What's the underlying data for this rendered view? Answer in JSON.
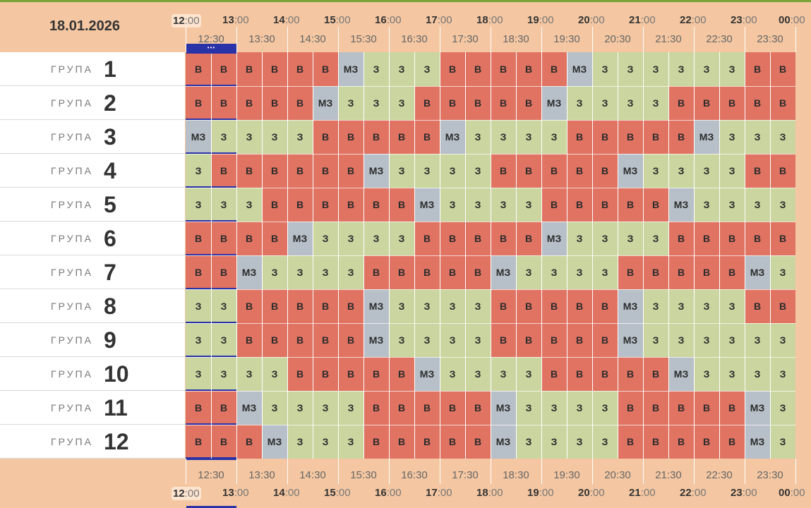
{
  "date": "18.01.2026",
  "row_label_word": "ГРУПА",
  "hour_marks": [
    {
      "h": "12",
      "m": ":00"
    },
    {
      "h": "13",
      "m": ":00"
    },
    {
      "h": "14",
      "m": ":00"
    },
    {
      "h": "15",
      "m": ":00"
    },
    {
      "h": "16",
      "m": ":00"
    },
    {
      "h": "17",
      "m": ":00"
    },
    {
      "h": "18",
      "m": ":00"
    },
    {
      "h": "19",
      "m": ":00"
    },
    {
      "h": "20",
      "m": ":00"
    },
    {
      "h": "21",
      "m": ":00"
    },
    {
      "h": "22",
      "m": ":00"
    },
    {
      "h": "23",
      "m": ":00"
    },
    {
      "h": "00",
      "m": ":00"
    }
  ],
  "half_marks": [
    "12:30",
    "13:30",
    "14:30",
    "15:30",
    "16:30",
    "17:30",
    "18:30",
    "19:30",
    "20:30",
    "21:30",
    "22:30",
    "23:30"
  ],
  "now_indicator": "•••",
  "status_colors": {
    "В": "#e07362",
    "З": "#cad59f",
    "МЗ": "#b7c0c8"
  },
  "groups": [
    {
      "num": "1",
      "cells": [
        "В",
        "В",
        "В",
        "В",
        "В",
        "В",
        "МЗ",
        "З",
        "З",
        "З",
        "В",
        "В",
        "В",
        "В",
        "В",
        "МЗ",
        "З",
        "З",
        "З",
        "З",
        "З",
        "З",
        "В",
        "В"
      ]
    },
    {
      "num": "2",
      "cells": [
        "В",
        "В",
        "В",
        "В",
        "В",
        "МЗ",
        "З",
        "З",
        "З",
        "В",
        "В",
        "В",
        "В",
        "В",
        "МЗ",
        "З",
        "З",
        "З",
        "З",
        "В",
        "В",
        "В",
        "В",
        "В"
      ]
    },
    {
      "num": "3",
      "cells": [
        "МЗ",
        "З",
        "З",
        "З",
        "З",
        "В",
        "В",
        "В",
        "В",
        "В",
        "МЗ",
        "З",
        "З",
        "З",
        "З",
        "В",
        "В",
        "В",
        "В",
        "В",
        "МЗ",
        "З",
        "З",
        "З"
      ]
    },
    {
      "num": "4",
      "cells": [
        "З",
        "В",
        "В",
        "В",
        "В",
        "В",
        "В",
        "МЗ",
        "З",
        "З",
        "З",
        "З",
        "В",
        "В",
        "В",
        "В",
        "В",
        "МЗ",
        "З",
        "З",
        "З",
        "З",
        "В",
        "В"
      ]
    },
    {
      "num": "5",
      "cells": [
        "З",
        "З",
        "З",
        "В",
        "В",
        "В",
        "В",
        "В",
        "В",
        "МЗ",
        "З",
        "З",
        "З",
        "З",
        "В",
        "В",
        "В",
        "В",
        "В",
        "МЗ",
        "З",
        "З",
        "З",
        "З"
      ]
    },
    {
      "num": "6",
      "cells": [
        "В",
        "В",
        "В",
        "В",
        "МЗ",
        "З",
        "З",
        "З",
        "З",
        "В",
        "В",
        "В",
        "В",
        "В",
        "МЗ",
        "З",
        "З",
        "З",
        "З",
        "В",
        "В",
        "В",
        "В",
        "В"
      ]
    },
    {
      "num": "7",
      "cells": [
        "В",
        "В",
        "МЗ",
        "З",
        "З",
        "З",
        "З",
        "В",
        "В",
        "В",
        "В",
        "В",
        "МЗ",
        "З",
        "З",
        "З",
        "З",
        "В",
        "В",
        "В",
        "В",
        "В",
        "МЗ",
        "З"
      ]
    },
    {
      "num": "8",
      "cells": [
        "З",
        "З",
        "В",
        "В",
        "В",
        "В",
        "В",
        "МЗ",
        "З",
        "З",
        "З",
        "З",
        "В",
        "В",
        "В",
        "В",
        "В",
        "МЗ",
        "З",
        "З",
        "З",
        "З",
        "В",
        "В"
      ]
    },
    {
      "num": "9",
      "cells": [
        "З",
        "З",
        "В",
        "В",
        "В",
        "В",
        "В",
        "МЗ",
        "З",
        "З",
        "З",
        "З",
        "В",
        "В",
        "В",
        "В",
        "В",
        "МЗ",
        "З",
        "З",
        "З",
        "З",
        "З",
        "З"
      ]
    },
    {
      "num": "10",
      "cells": [
        "З",
        "З",
        "З",
        "З",
        "В",
        "В",
        "В",
        "В",
        "В",
        "МЗ",
        "З",
        "З",
        "З",
        "З",
        "В",
        "В",
        "В",
        "В",
        "В",
        "МЗ",
        "З",
        "З",
        "З",
        "З"
      ]
    },
    {
      "num": "11",
      "cells": [
        "В",
        "В",
        "МЗ",
        "З",
        "З",
        "З",
        "З",
        "В",
        "В",
        "В",
        "В",
        "В",
        "МЗ",
        "З",
        "З",
        "З",
        "З",
        "В",
        "В",
        "В",
        "В",
        "В",
        "МЗ",
        "З"
      ]
    },
    {
      "num": "12",
      "cells": [
        "В",
        "В",
        "В",
        "МЗ",
        "З",
        "З",
        "З",
        "В",
        "В",
        "В",
        "В",
        "В",
        "МЗ",
        "З",
        "З",
        "З",
        "З",
        "В",
        "В",
        "В",
        "В",
        "В",
        "МЗ",
        "З"
      ]
    }
  ]
}
